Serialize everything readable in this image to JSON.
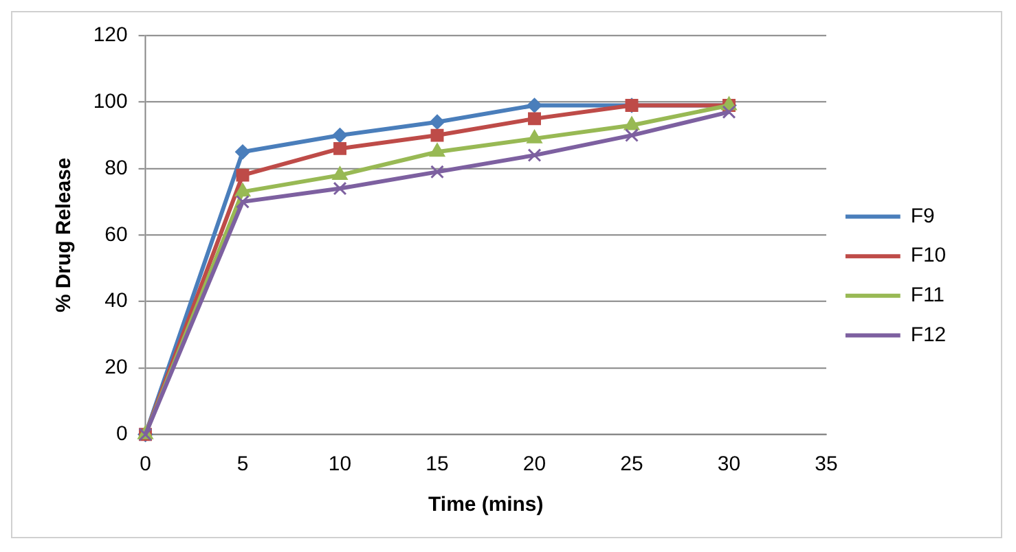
{
  "chart_data": {
    "type": "line",
    "xlabel": "Time (mins)",
    "ylabel": "% Drug Release",
    "x": [
      0,
      5,
      10,
      15,
      20,
      25,
      30
    ],
    "series": [
      {
        "name": "F9",
        "color": "#4a7ebb",
        "marker": "diamond",
        "values": [
          0,
          85,
          90,
          94,
          99,
          99,
          99
        ]
      },
      {
        "name": "F10",
        "color": "#be4b48",
        "marker": "square",
        "values": [
          0,
          78,
          86,
          90,
          95,
          99,
          99
        ]
      },
      {
        "name": "F11",
        "color": "#98b954",
        "marker": "triangle",
        "values": [
          0,
          73,
          78,
          85,
          89,
          93,
          99
        ]
      },
      {
        "name": "F12",
        "color": "#7d60a0",
        "marker": "cross",
        "values": [
          0,
          70,
          74,
          79,
          84,
          90,
          97
        ]
      }
    ],
    "xlim": [
      0,
      35
    ],
    "xticks": [
      0,
      5,
      10,
      15,
      20,
      25,
      30,
      35
    ],
    "ylim": [
      0,
      120
    ],
    "yticks": [
      0,
      20,
      40,
      60,
      80,
      100,
      120
    ],
    "grid": "y",
    "legend": "right"
  }
}
